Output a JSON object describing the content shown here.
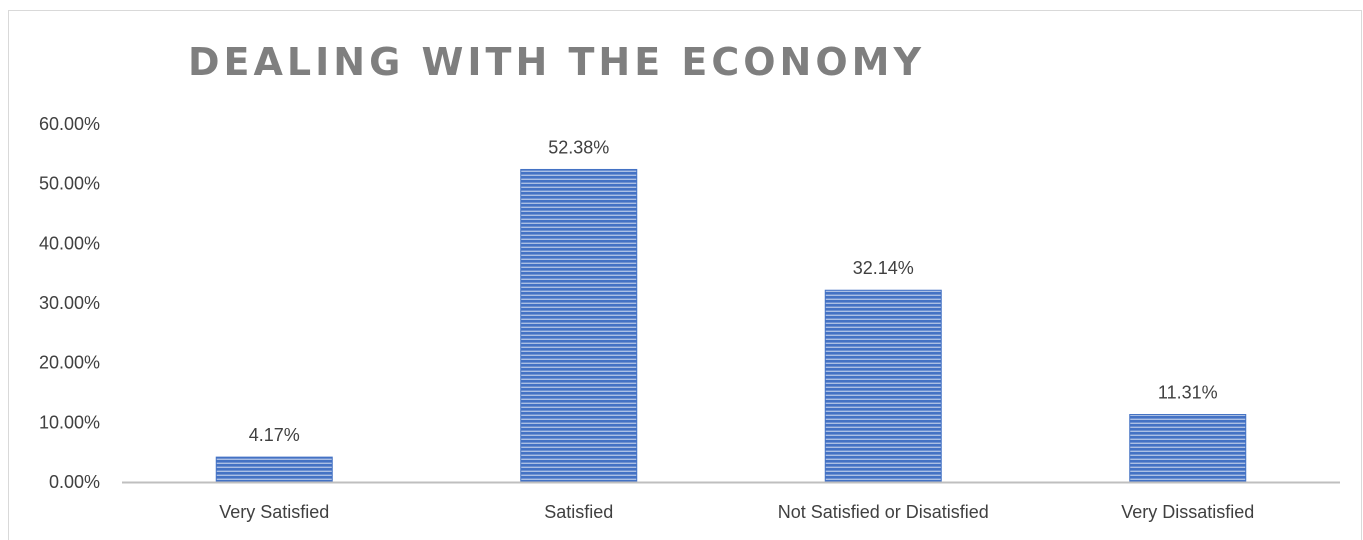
{
  "chart_data": {
    "type": "bar",
    "title": "DEALING WITH THE ECONOMY",
    "categories": [
      "Very Satisfied",
      "Satisfied",
      "Not Satisfied or Disatisfied",
      "Very Dissatisfied"
    ],
    "values": [
      4.17,
      52.38,
      32.14,
      11.31
    ],
    "data_labels": [
      "4.17%",
      "52.38%",
      "32.14%",
      "11.31%"
    ],
    "y_ticks": [
      "0.00%",
      "10.00%",
      "20.00%",
      "30.00%",
      "40.00%",
      "50.00%",
      "60.00%"
    ],
    "ylim": [
      0,
      60
    ],
    "grid": false,
    "legend": "none",
    "bar_color": "#4472c4",
    "bar_stripe_color": "#ffffff",
    "axis_color": "#bfbfbf"
  }
}
